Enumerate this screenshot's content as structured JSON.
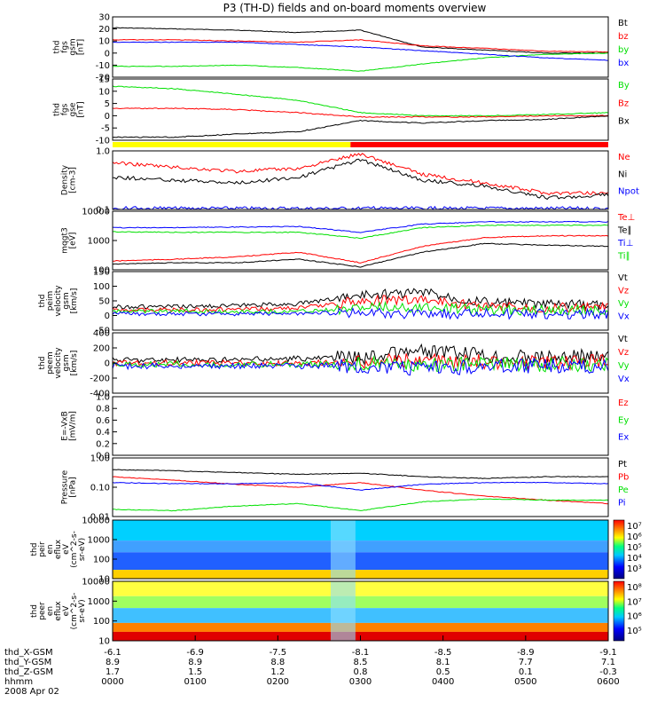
{
  "title": "P3 (TH-D) fields and on-board moments overview",
  "colors": {
    "black": "#000000",
    "red": "#ff0000",
    "green": "#00e000",
    "blue": "#0000ff",
    "yellow": "#ffff00"
  },
  "chart_data": {
    "type": "line",
    "x_ticks": [
      "0000",
      "0100",
      "0200",
      "0300",
      "0400",
      "0500",
      "0600"
    ],
    "ephemeris": [
      {
        "label": "thd_X-GSM",
        "values": [
          "-6.1",
          "-6.9",
          "-7.5",
          "-8.1",
          "-8.5",
          "-8.9",
          "-9.1"
        ]
      },
      {
        "label": "thd_Y-GSM",
        "values": [
          "8.9",
          "8.9",
          "8.8",
          "8.5",
          "8.1",
          "7.7",
          "7.1"
        ]
      },
      {
        "label": "thd_Z-GSM",
        "values": [
          "1.7",
          "1.5",
          "1.2",
          "0.8",
          "0.5",
          "0.1",
          "-0.3"
        ]
      },
      {
        "label": "hhmm",
        "values": [
          "0000",
          "0100",
          "0200",
          "0300",
          "0400",
          "0500",
          "0600"
        ]
      }
    ],
    "date": "2008 Apr 02",
    "panels": [
      {
        "id": "fgs_gsm",
        "ylabel": [
          "thd",
          "fgs",
          "gsm",
          "[nT]"
        ],
        "ylim": [
          -20,
          30
        ],
        "yticks": [
          "30",
          "20",
          "10",
          "0",
          "-10",
          "-20"
        ],
        "series": [
          {
            "name": "Bt",
            "color": "#000000"
          },
          {
            "name": "bz",
            "color": "#ff0000"
          },
          {
            "name": "by",
            "color": "#00e000"
          },
          {
            "name": "bx",
            "color": "#0000ff"
          }
        ]
      },
      {
        "id": "fgs_gse",
        "ylabel": [
          "thd",
          "fgs",
          "gse",
          "[nT]"
        ],
        "ylim": [
          -12,
          15
        ],
        "yticks": [
          "15",
          "10",
          "5",
          "0",
          "-5",
          "-10"
        ],
        "series": [
          {
            "name": "By",
            "color": "#00e000"
          },
          {
            "name": "Bz",
            "color": "#ff0000"
          },
          {
            "name": "Bx",
            "color": "#000000"
          }
        ]
      },
      {
        "id": "density",
        "ylabel": [
          "Density",
          "[cm-3]"
        ],
        "log": true,
        "ylim": [
          0.1,
          1.0
        ],
        "yticks": [
          "1.0",
          "0.1"
        ],
        "series": [
          {
            "name": "Ne",
            "color": "#ff0000"
          },
          {
            "name": "Ni",
            "color": "#000000"
          },
          {
            "name": "Npot",
            "color": "#0000ff"
          }
        ]
      },
      {
        "id": "temp",
        "ylabel": [
          "mqgt3",
          "[eV]"
        ],
        "log": true,
        "ylim": [
          100,
          10000
        ],
        "yticks": [
          "10000",
          "1000",
          "100"
        ],
        "series": [
          {
            "name": "Te⊥",
            "color": "#ff0000"
          },
          {
            "name": "Te∥",
            "color": "#000000"
          },
          {
            "name": "Ti⊥",
            "color": "#0000ff"
          },
          {
            "name": "Ti∥",
            "color": "#00e000"
          }
        ]
      },
      {
        "id": "peim_vel",
        "ylabel": [
          "thd",
          "peim",
          "velocity",
          "gsm",
          "[km/s]"
        ],
        "ylim": [
          -50,
          150
        ],
        "yticks": [
          "150",
          "100",
          "50",
          "0",
          "-50"
        ],
        "series": [
          {
            "name": "Vt",
            "color": "#000000"
          },
          {
            "name": "Vz",
            "color": "#ff0000"
          },
          {
            "name": "Vy",
            "color": "#00e000"
          },
          {
            "name": "Vx",
            "color": "#0000ff"
          }
        ]
      },
      {
        "id": "peem_vel",
        "ylabel": [
          "thd",
          "peem",
          "velocity",
          "gsm",
          "[km/s]"
        ],
        "ylim": [
          -400,
          400
        ],
        "yticks": [
          "400",
          "200",
          "0",
          "-200",
          "-400"
        ],
        "series": [
          {
            "name": "Vt",
            "color": "#000000"
          },
          {
            "name": "Vz",
            "color": "#ff0000"
          },
          {
            "name": "Vy",
            "color": "#00e000"
          },
          {
            "name": "Vx",
            "color": "#0000ff"
          }
        ]
      },
      {
        "id": "efield",
        "ylabel": [
          "E=-VxB",
          "[mV/m]"
        ],
        "ylim": [
          0,
          1.0
        ],
        "yticks": [
          "1.0",
          "0.8",
          "0.6",
          "0.4",
          "0.2",
          "0.0"
        ],
        "series": [
          {
            "name": "Ez",
            "color": "#ff0000"
          },
          {
            "name": "Ey",
            "color": "#00e000"
          },
          {
            "name": "Ex",
            "color": "#0000ff"
          }
        ]
      },
      {
        "id": "pressure",
        "ylabel": [
          "Pressure",
          "[nPa]"
        ],
        "log": true,
        "ylim": [
          0.01,
          1.0
        ],
        "yticks": [
          "1.00",
          "0.10",
          "0.01"
        ],
        "series": [
          {
            "name": "Pt",
            "color": "#000000"
          },
          {
            "name": "Pb",
            "color": "#ff0000"
          },
          {
            "name": "Pe",
            "color": "#00e000"
          },
          {
            "name": "Pi",
            "color": "#0000ff"
          }
        ]
      },
      {
        "id": "peir_spec",
        "ylabel": [
          "thd",
          "peir",
          "en",
          "eflux",
          "eV",
          "(cm^2-s-",
          "sr-eV)"
        ],
        "log": true,
        "ylim": [
          10,
          10000
        ],
        "yticks": [
          "10000",
          "1000",
          "100",
          "10"
        ],
        "cbar_ticks": [
          "10⁷",
          "10⁶",
          "10⁵",
          "10⁴",
          "10³"
        ]
      },
      {
        "id": "peer_spec",
        "ylabel": [
          "thd",
          "peer",
          "en",
          "eflux",
          "eV",
          "(cm^2-s-",
          "sr-eV)"
        ],
        "log": true,
        "ylim": [
          10,
          10000
        ],
        "yticks": [
          "10000",
          "1000",
          "100",
          "10"
        ],
        "cbar_ticks": [
          "10⁸",
          "10⁷",
          "10⁶",
          "10⁵"
        ]
      }
    ]
  }
}
